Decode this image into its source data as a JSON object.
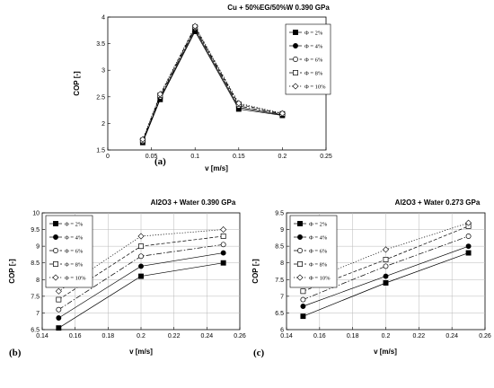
{
  "legend_entries": [
    "Φ = 2%",
    "Φ = 4%",
    "Φ = 6%",
    "Φ = 8%",
    "Φ = 10%"
  ],
  "chart_data": [
    {
      "type": "line",
      "panel_label": "(a)",
      "title": "Cu + 50%EG/50%W 0.390 GPa",
      "xlabel": "v [m/s]",
      "ylabel": "COP [-]",
      "xlim": [
        0,
        0.25
      ],
      "ylim": [
        1.5,
        4
      ],
      "xticks": [
        "0",
        "0.05",
        "0.1",
        "0.15",
        "0.2",
        "0.25"
      ],
      "yticks": [
        "1.5",
        "2",
        "2.5",
        "3",
        "3.5",
        "4"
      ],
      "grid": false,
      "legend_position": "top-right",
      "x": [
        0.04,
        0.06,
        0.1,
        0.15,
        0.2
      ],
      "series": [
        {
          "name": "Φ = 2%",
          "values": [
            1.64,
            2.45,
            3.73,
            2.27,
            2.15
          ]
        },
        {
          "name": "Φ = 4%",
          "values": [
            1.65,
            2.47,
            3.76,
            2.3,
            2.16
          ]
        },
        {
          "name": "Φ = 6%",
          "values": [
            1.66,
            2.5,
            3.79,
            2.33,
            2.17
          ]
        },
        {
          "name": "Φ = 8%",
          "values": [
            1.68,
            2.53,
            3.81,
            2.36,
            2.18
          ]
        },
        {
          "name": "Φ = 10%",
          "values": [
            1.7,
            2.55,
            3.83,
            2.38,
            2.19
          ]
        }
      ]
    },
    {
      "type": "line",
      "panel_label": "(b)",
      "title": "Al2O3 + Water  0.390 GPa",
      "xlabel": "v [m/s]",
      "ylabel": "COP [-]",
      "xlim": [
        0.14,
        0.26
      ],
      "ylim": [
        6.5,
        10
      ],
      "xticks": [
        "0.14",
        "0.16",
        "0.18",
        "0.2",
        "0.22",
        "0.24",
        "0.26"
      ],
      "yticks": [
        "6.5",
        "7",
        "7.5",
        "8",
        "8.5",
        "9",
        "9.5",
        "10"
      ],
      "grid": true,
      "legend_position": "top-left",
      "x": [
        0.15,
        0.2,
        0.25
      ],
      "series": [
        {
          "name": "Φ = 2%",
          "values": [
            6.55,
            8.1,
            8.5
          ]
        },
        {
          "name": "Φ = 4%",
          "values": [
            6.85,
            8.4,
            8.8
          ]
        },
        {
          "name": "Φ = 6%",
          "values": [
            7.1,
            8.7,
            9.05
          ]
        },
        {
          "name": "Φ = 8%",
          "values": [
            7.4,
            9.0,
            9.3
          ]
        },
        {
          "name": "Φ = 10%",
          "values": [
            7.65,
            9.3,
            9.5
          ]
        }
      ]
    },
    {
      "type": "line",
      "panel_label": "(c)",
      "title": "Al2O3 + Water  0.273 GPa",
      "xlabel": "v [m/s]",
      "ylabel": "COP [-]",
      "xlim": [
        0.14,
        0.26
      ],
      "ylim": [
        6,
        9.5
      ],
      "xticks": [
        "0.14",
        "0.16",
        "0.18",
        "0.2",
        "0.22",
        "0.24",
        "0.26"
      ],
      "yticks": [
        "6",
        "6.5",
        "7",
        "7.5",
        "8",
        "8.5",
        "9",
        "9.5"
      ],
      "grid": true,
      "legend_position": "top-left",
      "x": [
        0.15,
        0.2,
        0.25
      ],
      "series": [
        {
          "name": "Φ = 2%",
          "values": [
            6.4,
            7.4,
            8.3
          ]
        },
        {
          "name": "Φ = 4%",
          "values": [
            6.7,
            7.6,
            8.5
          ]
        },
        {
          "name": "Φ = 6%",
          "values": [
            6.9,
            7.9,
            8.8
          ]
        },
        {
          "name": "Φ = 8%",
          "values": [
            7.15,
            8.1,
            9.1
          ]
        },
        {
          "name": "Φ = 10%",
          "values": [
            7.4,
            8.4,
            9.2
          ]
        }
      ]
    }
  ]
}
